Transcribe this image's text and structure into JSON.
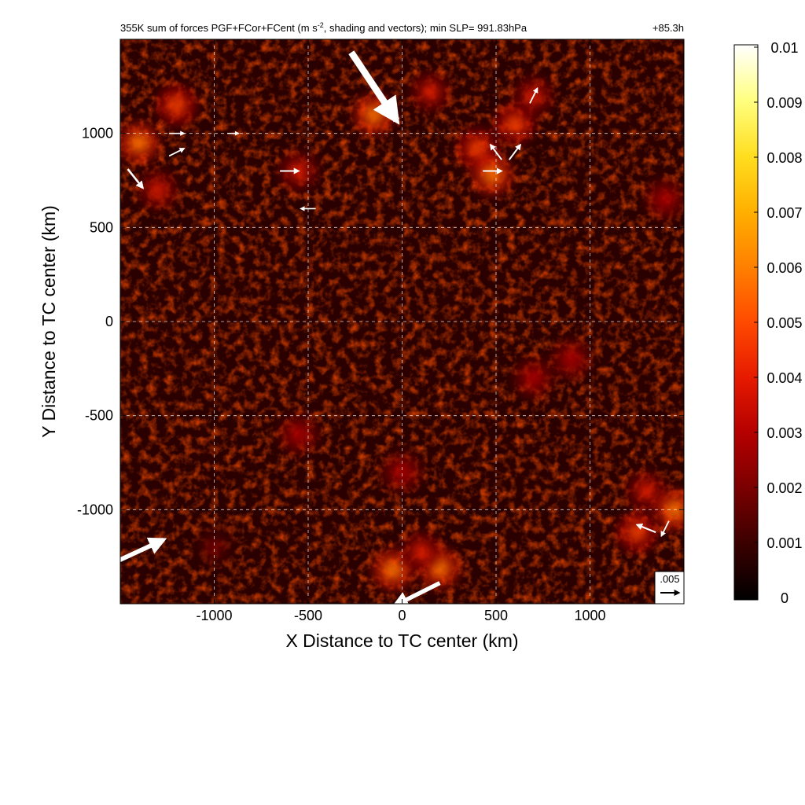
{
  "chart_data": {
    "type": "heatmap",
    "title": "355K sum of forces PGF+FCor+FCent (m s",
    "title_superscript": "-2",
    "title_rest": ", shading and vectors); min SLP= 991.83hPa",
    "time_label": "+85.3h",
    "xlabel": "X Distance to TC center (km)",
    "ylabel": "Y Distance to TC center (km)",
    "xlim": [
      -1500,
      1500
    ],
    "ylim": [
      -1500,
      1500
    ],
    "xticks": [
      -1000,
      -500,
      0,
      500,
      1000
    ],
    "yticks": [
      -1000,
      -500,
      0,
      500,
      1000
    ],
    "xtick_labels": [
      "-1000",
      "-500",
      "0",
      "500",
      "1000"
    ],
    "ytick_labels": [
      "-1000",
      "-500",
      "0",
      "500",
      "1000"
    ],
    "grid": true,
    "colorbar": {
      "min": 0,
      "max": 0.01,
      "ticks": [
        0,
        0.001,
        0.002,
        0.003,
        0.004,
        0.005,
        0.006,
        0.007,
        0.008,
        0.009,
        0.01
      ],
      "tick_labels": [
        "0",
        "0.001",
        "0.002",
        "0.003",
        "0.004",
        "0.005",
        "0.006",
        "0.007",
        "0.008",
        "0.009",
        "0.01"
      ],
      "colormap": [
        "#000000",
        "#3a0000",
        "#7a0000",
        "#b40000",
        "#e61a00",
        "#ff4a00",
        "#ff8000",
        "#ffb000",
        "#ffde20",
        "#ffff80",
        "#ffffff"
      ]
    },
    "reference_vector": {
      "label": ".005",
      "value": 0.005
    },
    "hotspots": [
      {
        "x": -1400,
        "y": 950,
        "value": 0.006
      },
      {
        "x": -1200,
        "y": 1150,
        "value": 0.005
      },
      {
        "x": -150,
        "y": 1100,
        "value": 0.006
      },
      {
        "x": 150,
        "y": 1220,
        "value": 0.004
      },
      {
        "x": 400,
        "y": 920,
        "value": 0.005
      },
      {
        "x": 480,
        "y": 780,
        "value": 0.006
      },
      {
        "x": 600,
        "y": 1050,
        "value": 0.005
      },
      {
        "x": 700,
        "y": 1200,
        "value": 0.004
      },
      {
        "x": -550,
        "y": 800,
        "value": 0.004
      },
      {
        "x": -1300,
        "y": 700,
        "value": 0.004
      },
      {
        "x": 1400,
        "y": 650,
        "value": 0.003
      },
      {
        "x": 900,
        "y": -200,
        "value": 0.003
      },
      {
        "x": 1300,
        "y": -900,
        "value": 0.004
      },
      {
        "x": 1450,
        "y": -1000,
        "value": 0.006
      },
      {
        "x": 1250,
        "y": -1120,
        "value": 0.005
      },
      {
        "x": -50,
        "y": -1320,
        "value": 0.006
      },
      {
        "x": 200,
        "y": -1310,
        "value": 0.006
      },
      {
        "x": 100,
        "y": -1220,
        "value": 0.004
      },
      {
        "x": -550,
        "y": -600,
        "value": 0.003
      },
      {
        "x": 0,
        "y": -800,
        "value": 0.003
      },
      {
        "x": -1000,
        "y": -1200,
        "value": 0.002
      },
      {
        "x": 700,
        "y": -300,
        "value": 0.003
      }
    ],
    "vectors": [
      {
        "x": -150,
        "y": 1250,
        "u": 0.012,
        "v": -0.018
      },
      {
        "x": -1400,
        "y": -1220,
        "u": 0.013,
        "v": 0.006
      },
      {
        "x": 80,
        "y": -1450,
        "u": -0.012,
        "v": -0.006
      },
      {
        "x": -1420,
        "y": 760,
        "u": 0.004,
        "v": -0.005
      },
      {
        "x": -600,
        "y": 800,
        "u": 0.005,
        "v": 0.0
      },
      {
        "x": -500,
        "y": 600,
        "u": -0.004,
        "v": 0.0
      },
      {
        "x": 480,
        "y": 800,
        "u": 0.005,
        "v": 0.0
      },
      {
        "x": 500,
        "y": 900,
        "u": -0.003,
        "v": 0.004
      },
      {
        "x": 600,
        "y": 900,
        "u": 0.003,
        "v": 0.004
      },
      {
        "x": 700,
        "y": 1200,
        "u": 0.002,
        "v": 0.004
      },
      {
        "x": 1300,
        "y": -1100,
        "u": -0.005,
        "v": 0.002
      },
      {
        "x": 1400,
        "y": -1100,
        "u": -0.002,
        "v": -0.004
      },
      {
        "x": -1200,
        "y": 1000,
        "u": 0.004,
        "v": 0.0
      },
      {
        "x": -900,
        "y": 1000,
        "u": 0.003,
        "v": 0.0
      },
      {
        "x": -1200,
        "y": 900,
        "u": 0.004,
        "v": 0.002
      }
    ]
  }
}
